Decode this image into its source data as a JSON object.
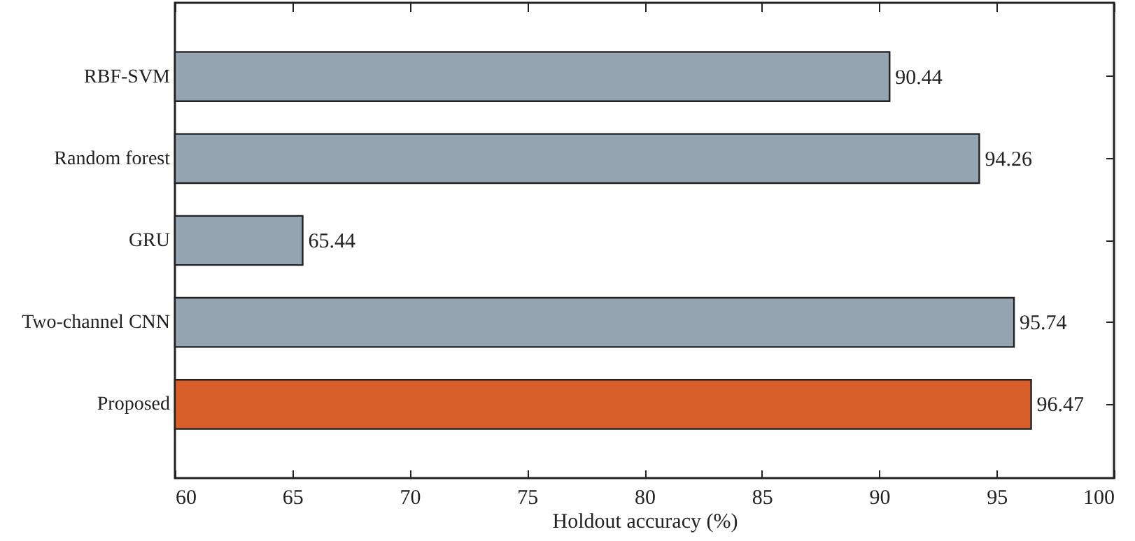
{
  "chart_data": {
    "type": "bar",
    "orientation": "horizontal",
    "xlabel": "Holdout accuracy (%)",
    "categories": [
      "RBF-SVM",
      "Random forest",
      "GRU",
      "Two-channel CNN",
      "Proposed"
    ],
    "values": [
      90.44,
      94.26,
      65.44,
      95.74,
      96.47
    ],
    "colors": [
      "#94a4b0",
      "#94a4b0",
      "#94a4b0",
      "#94a4b0",
      "#d95f2a"
    ],
    "xlim": [
      60,
      100
    ],
    "xticks": [
      60,
      65,
      70,
      75,
      80,
      85,
      90,
      95,
      100
    ],
    "data_labels": true
  }
}
